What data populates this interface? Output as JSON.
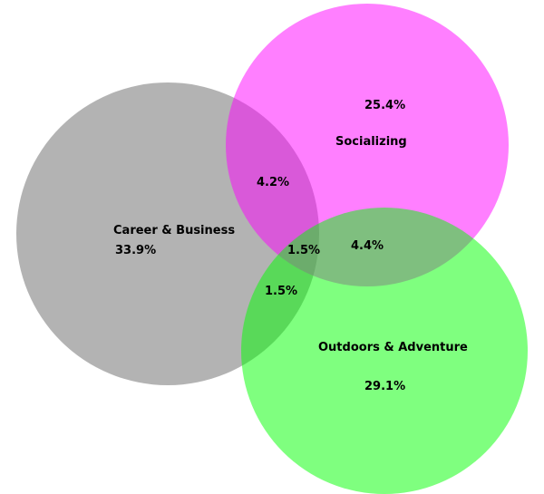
{
  "chart_data": {
    "type": "venn",
    "sets": [
      {
        "name": "Career & Business",
        "value": "33.9%",
        "color": "#999999"
      },
      {
        "name": "Socializing",
        "value": "25.4%",
        "color": "#ff00ff"
      },
      {
        "name": "Outdoors & Adventure",
        "value": "29.1%",
        "color": "#00ff00"
      }
    ],
    "intersections": [
      {
        "sets": [
          "Career & Business",
          "Socializing"
        ],
        "value": "4.2%"
      },
      {
        "sets": [
          "Socializing",
          "Outdoors & Adventure"
        ],
        "value": "4.4%"
      },
      {
        "sets": [
          "Career & Business",
          "Outdoors & Adventure"
        ],
        "value": "1.5%"
      },
      {
        "sets": [
          "Career & Business",
          "Socializing",
          "Outdoors & Adventure"
        ],
        "value": "1.5%"
      }
    ],
    "title": "",
    "legend": "none"
  }
}
